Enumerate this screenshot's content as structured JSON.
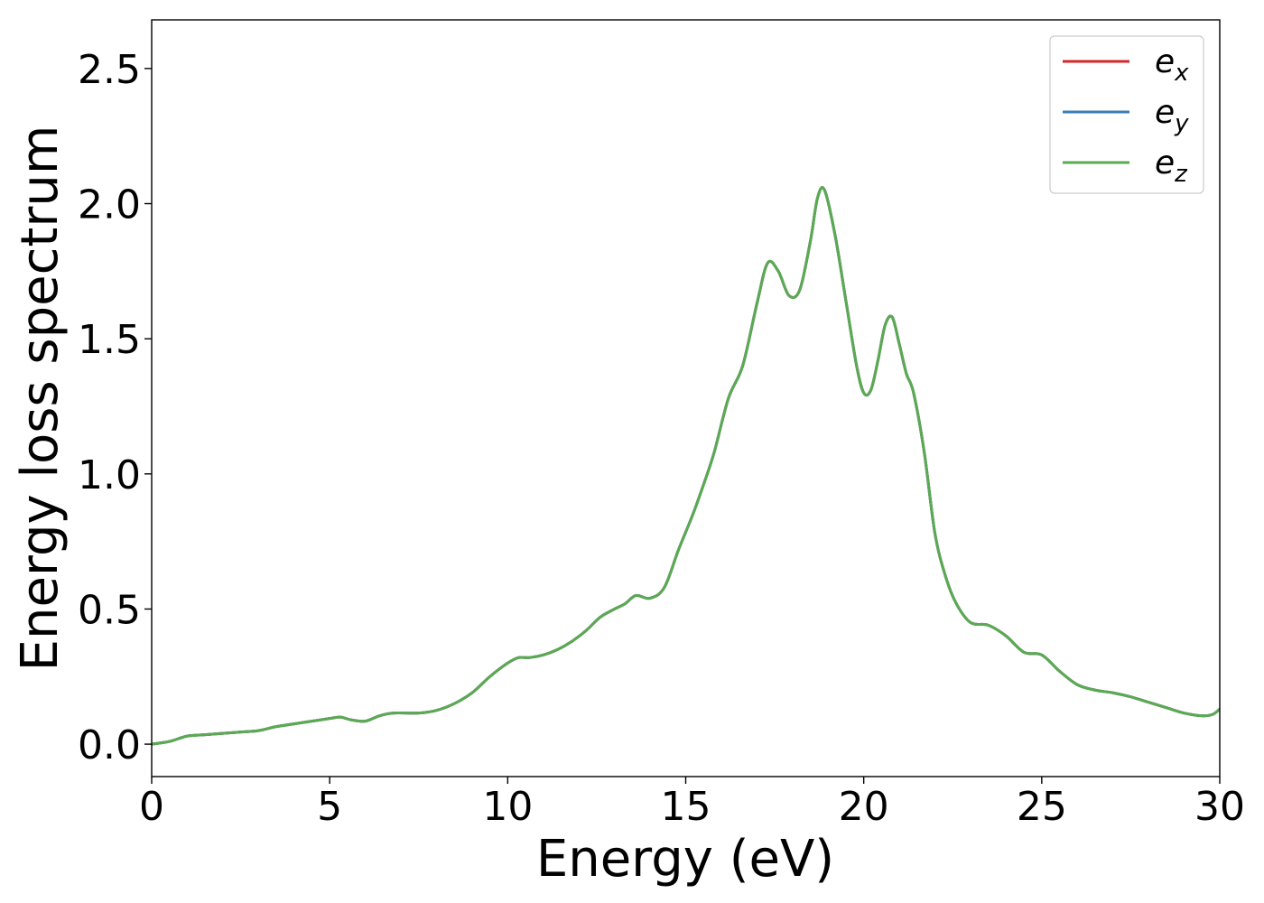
{
  "chart_data": {
    "type": "line",
    "title": "",
    "xlabel": "Energy (eV)",
    "ylabel": "Energy loss spectrum",
    "xlim": [
      0,
      30
    ],
    "ylim": [
      -0.12,
      2.68
    ],
    "xticks": [
      0,
      5,
      10,
      15,
      20,
      25,
      30
    ],
    "xtick_labels": [
      "0",
      "5",
      "10",
      "15",
      "20",
      "25",
      "30"
    ],
    "yticks": [
      0.0,
      0.5,
      1.0,
      1.5,
      2.0,
      2.5
    ],
    "ytick_labels": [
      "0.0",
      "0.5",
      "1.0",
      "1.5",
      "2.0",
      "2.5"
    ],
    "grid": false,
    "legend_position": "top-right",
    "x": [
      0,
      0.5,
      1.0,
      1.5,
      2.0,
      2.5,
      3.0,
      3.5,
      4.0,
      4.5,
      5.0,
      5.3,
      5.6,
      6.0,
      6.4,
      6.8,
      7.5,
      8.0,
      8.5,
      9.0,
      9.5,
      10.0,
      10.3,
      10.6,
      11.0,
      11.4,
      11.8,
      12.2,
      12.6,
      13.0,
      13.3,
      13.6,
      14.0,
      14.4,
      14.8,
      15.2,
      15.5,
      15.8,
      16.2,
      16.6,
      17.0,
      17.3,
      17.6,
      17.9,
      18.2,
      18.5,
      18.7,
      18.9,
      19.2,
      19.5,
      19.8,
      20.0,
      20.2,
      20.4,
      20.6,
      20.8,
      21.0,
      21.2,
      21.4,
      21.7,
      22.0,
      22.3,
      22.6,
      23.0,
      23.5,
      24.0,
      24.5,
      25.0,
      25.5,
      26.0,
      26.5,
      27.0,
      27.5,
      28.0,
      28.5,
      29.0,
      29.5,
      29.8,
      30.0
    ],
    "series": [
      {
        "name": "e_x",
        "color": "#d62728",
        "values": [
          0.0,
          0.01,
          0.03,
          0.035,
          0.04,
          0.045,
          0.05,
          0.065,
          0.075,
          0.085,
          0.095,
          0.1,
          0.09,
          0.085,
          0.105,
          0.115,
          0.115,
          0.125,
          0.15,
          0.19,
          0.25,
          0.3,
          0.32,
          0.32,
          0.33,
          0.35,
          0.38,
          0.42,
          0.47,
          0.5,
          0.52,
          0.55,
          0.54,
          0.58,
          0.72,
          0.85,
          0.96,
          1.08,
          1.28,
          1.4,
          1.63,
          1.78,
          1.75,
          1.66,
          1.68,
          1.86,
          2.02,
          2.05,
          1.88,
          1.64,
          1.4,
          1.3,
          1.31,
          1.42,
          1.55,
          1.58,
          1.48,
          1.37,
          1.3,
          1.08,
          0.78,
          0.62,
          0.52,
          0.45,
          0.44,
          0.4,
          0.34,
          0.33,
          0.27,
          0.22,
          0.2,
          0.19,
          0.175,
          0.155,
          0.135,
          0.115,
          0.105,
          0.11,
          0.13
        ]
      },
      {
        "name": "e_y",
        "color": "#3a7eb6",
        "values": [
          0.0,
          0.01,
          0.03,
          0.035,
          0.04,
          0.045,
          0.05,
          0.065,
          0.075,
          0.085,
          0.095,
          0.1,
          0.09,
          0.085,
          0.105,
          0.115,
          0.115,
          0.125,
          0.15,
          0.19,
          0.25,
          0.3,
          0.32,
          0.32,
          0.33,
          0.35,
          0.38,
          0.42,
          0.47,
          0.5,
          0.52,
          0.55,
          0.54,
          0.58,
          0.72,
          0.85,
          0.96,
          1.08,
          1.28,
          1.4,
          1.63,
          1.78,
          1.75,
          1.66,
          1.68,
          1.86,
          2.02,
          2.05,
          1.88,
          1.64,
          1.4,
          1.3,
          1.31,
          1.42,
          1.55,
          1.58,
          1.48,
          1.37,
          1.3,
          1.08,
          0.78,
          0.62,
          0.52,
          0.45,
          0.44,
          0.4,
          0.34,
          0.33,
          0.27,
          0.22,
          0.2,
          0.19,
          0.175,
          0.155,
          0.135,
          0.115,
          0.105,
          0.11,
          0.13
        ]
      },
      {
        "name": "e_z",
        "color": "#5aaa52",
        "values": [
          0.0,
          0.01,
          0.03,
          0.035,
          0.04,
          0.045,
          0.05,
          0.065,
          0.075,
          0.085,
          0.095,
          0.1,
          0.09,
          0.085,
          0.105,
          0.115,
          0.115,
          0.125,
          0.15,
          0.19,
          0.25,
          0.3,
          0.32,
          0.32,
          0.33,
          0.35,
          0.38,
          0.42,
          0.47,
          0.5,
          0.52,
          0.55,
          0.54,
          0.58,
          0.72,
          0.85,
          0.96,
          1.08,
          1.28,
          1.4,
          1.63,
          1.78,
          1.75,
          1.66,
          1.68,
          1.86,
          2.02,
          2.05,
          1.88,
          1.64,
          1.4,
          1.3,
          1.31,
          1.42,
          1.55,
          1.58,
          1.48,
          1.37,
          1.3,
          1.08,
          0.78,
          0.62,
          0.52,
          0.45,
          0.44,
          0.4,
          0.34,
          0.33,
          0.27,
          0.22,
          0.2,
          0.19,
          0.175,
          0.155,
          0.135,
          0.115,
          0.105,
          0.11,
          0.13
        ]
      }
    ],
    "legend_entries": [
      {
        "base": "e",
        "sub": "x",
        "color": "#d62728"
      },
      {
        "base": "e",
        "sub": "y",
        "color": "#3a7eb6"
      },
      {
        "base": "e",
        "sub": "z",
        "color": "#5aaa52"
      }
    ]
  }
}
